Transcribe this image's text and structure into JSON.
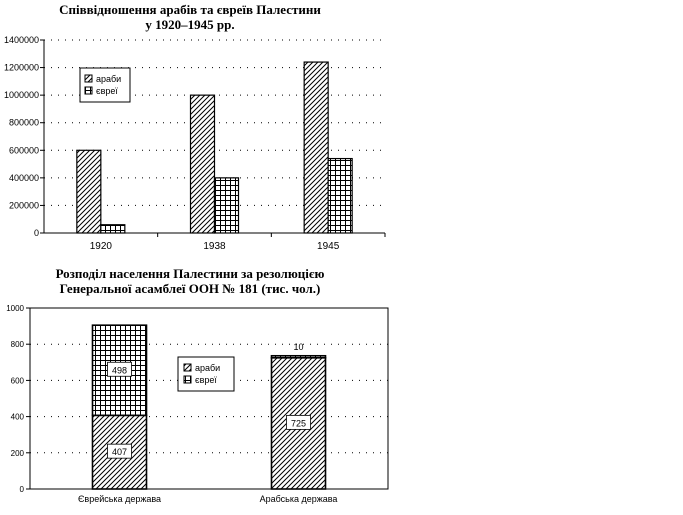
{
  "chart_data": [
    {
      "type": "bar",
      "title_lines": [
        "Співвідношення арабів та євреїв Палестини",
        "у 1920–1945 рр."
      ],
      "categories": [
        "1920",
        "1938",
        "1945"
      ],
      "series": [
        {
          "name": "араби",
          "values": [
            600000,
            1000000,
            1240000
          ],
          "pattern": "diagonal"
        },
        {
          "name": "євреї",
          "values": [
            60000,
            400000,
            540000
          ],
          "pattern": "grid"
        }
      ],
      "ylim": [
        0,
        1400000
      ],
      "yticks": [
        "0",
        "200000",
        "400000",
        "600000",
        "800000",
        "1000000",
        "1200000",
        "1400000"
      ],
      "grid": true,
      "legend": "top-left"
    },
    {
      "type": "bar",
      "stacked": true,
      "title_lines": [
        "Розподіл населення Палестини за резолюцією",
        "Генеральної асамблеї ООН № 181 (тис. чол.)"
      ],
      "categories": [
        "Єврейська держава",
        "Арабська держава"
      ],
      "series": [
        {
          "name": "араби",
          "values": [
            407,
            725
          ],
          "labels": [
            "407",
            "725"
          ],
          "pattern": "diagonal"
        },
        {
          "name": "євреї",
          "values": [
            498,
            10
          ],
          "labels": [
            "498",
            "10"
          ],
          "pattern": "grid"
        }
      ],
      "ylim": [
        0,
        1000
      ],
      "yticks": [
        "0",
        "200",
        "400",
        "600",
        "800",
        "1000"
      ],
      "grid": true,
      "legend": "center"
    }
  ]
}
